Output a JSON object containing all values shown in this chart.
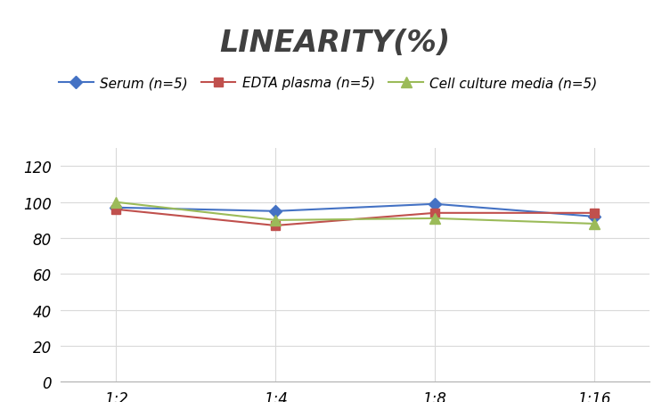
{
  "title": "LINEARITY(%)",
  "x_labels": [
    "1:2",
    "1:4",
    "1:8",
    "1:16"
  ],
  "x_positions": [
    0,
    1,
    2,
    3
  ],
  "series": [
    {
      "label": "Serum (n=5)",
      "color": "#4472C4",
      "marker": "D",
      "markersize": 7,
      "values": [
        97,
        95,
        99,
        92
      ]
    },
    {
      "label": "EDTA plasma (n=5)",
      "color": "#C0504D",
      "marker": "s",
      "markersize": 7,
      "values": [
        96,
        87,
        94,
        94
      ]
    },
    {
      "label": "Cell culture media (n=5)",
      "color": "#9BBB59",
      "marker": "^",
      "markersize": 8,
      "values": [
        100,
        90,
        91,
        88
      ]
    }
  ],
  "ylim": [
    0,
    130
  ],
  "yticks": [
    0,
    20,
    40,
    60,
    80,
    100,
    120
  ],
  "grid_color": "#d9d9d9",
  "title_fontsize": 24,
  "title_fontstyle": "italic",
  "title_fontweight": "bold",
  "title_color": "#404040",
  "legend_fontsize": 11,
  "tick_fontsize": 12,
  "background_color": "#ffffff"
}
